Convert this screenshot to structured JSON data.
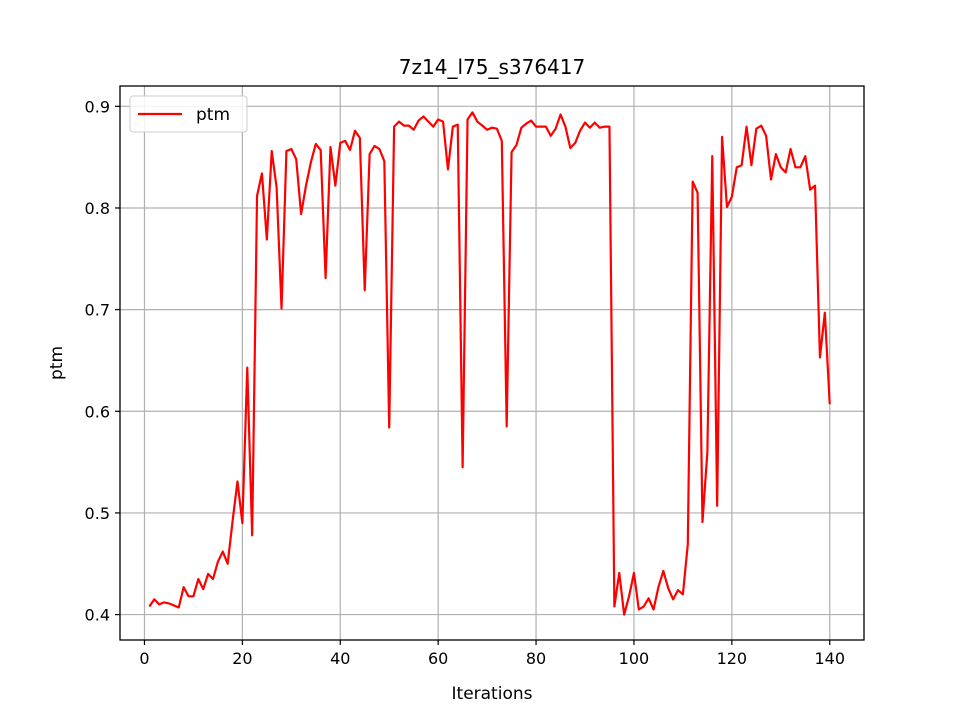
{
  "chart_data": {
    "type": "line",
    "title": "7z14_l75_s376417",
    "xlabel": "Iterations",
    "ylabel": "ptm",
    "xlim": [
      -5,
      147
    ],
    "ylim": [
      0.375,
      0.92
    ],
    "xticks": [
      0,
      20,
      40,
      60,
      80,
      100,
      120,
      140
    ],
    "yticks": [
      0.4,
      0.5,
      0.6,
      0.7,
      0.8,
      0.9
    ],
    "xtick_labels": [
      "0",
      "20",
      "40",
      "60",
      "80",
      "100",
      "120",
      "140"
    ],
    "ytick_labels": [
      "0.4",
      "0.5",
      "0.6",
      "0.7",
      "0.8",
      "0.9"
    ],
    "grid": true,
    "legend": {
      "position": "top-left",
      "entries": [
        "ptm"
      ]
    },
    "series": [
      {
        "name": "ptm",
        "color": "#ff0000",
        "x": [
          1,
          2,
          3,
          4,
          5,
          6,
          7,
          8,
          9,
          10,
          11,
          12,
          13,
          14,
          15,
          16,
          17,
          18,
          19,
          20,
          21,
          22,
          23,
          24,
          25,
          26,
          27,
          28,
          29,
          30,
          31,
          32,
          33,
          34,
          35,
          36,
          37,
          38,
          39,
          40,
          41,
          42,
          43,
          44,
          45,
          46,
          47,
          48,
          49,
          50,
          51,
          52,
          53,
          54,
          55,
          56,
          57,
          58,
          59,
          60,
          61,
          62,
          63,
          64,
          65,
          66,
          67,
          68,
          69,
          70,
          71,
          72,
          73,
          74,
          75,
          76,
          77,
          78,
          79,
          80,
          81,
          82,
          83,
          84,
          85,
          86,
          87,
          88,
          89,
          90,
          91,
          92,
          93,
          94,
          95,
          96,
          97,
          98,
          99,
          100,
          101,
          102,
          103,
          104,
          105,
          106,
          107,
          108,
          109,
          110,
          111,
          112,
          113,
          114,
          115,
          116,
          117,
          118,
          119,
          120,
          121,
          122,
          123,
          124,
          125,
          126,
          127,
          128,
          129,
          130,
          131,
          132,
          133,
          134,
          135,
          136,
          137,
          138,
          139,
          140
        ],
        "y": [
          0.408,
          0.415,
          0.41,
          0.412,
          0.411,
          0.409,
          0.407,
          0.427,
          0.418,
          0.418,
          0.435,
          0.425,
          0.44,
          0.435,
          0.452,
          0.462,
          0.45,
          0.492,
          0.531,
          0.49,
          0.643,
          0.478,
          0.812,
          0.834,
          0.769,
          0.856,
          0.82,
          0.701,
          0.856,
          0.858,
          0.848,
          0.794,
          0.822,
          0.845,
          0.863,
          0.857,
          0.731,
          0.86,
          0.822,
          0.864,
          0.866,
          0.857,
          0.876,
          0.869,
          0.719,
          0.853,
          0.861,
          0.858,
          0.846,
          0.584,
          0.88,
          0.885,
          0.881,
          0.881,
          0.877,
          0.886,
          0.89,
          0.885,
          0.88,
          0.887,
          0.885,
          0.838,
          0.88,
          0.882,
          0.545,
          0.887,
          0.894,
          0.885,
          0.881,
          0.877,
          0.879,
          0.878,
          0.866,
          0.585,
          0.855,
          0.862,
          0.879,
          0.883,
          0.886,
          0.88,
          0.88,
          0.88,
          0.871,
          0.878,
          0.892,
          0.88,
          0.859,
          0.864,
          0.876,
          0.884,
          0.879,
          0.884,
          0.879,
          0.88,
          0.88,
          0.408,
          0.441,
          0.4,
          0.418,
          0.441,
          0.405,
          0.408,
          0.416,
          0.405,
          0.427,
          0.443,
          0.426,
          0.415,
          0.424,
          0.42,
          0.469,
          0.826,
          0.815,
          0.491,
          0.56,
          0.851,
          0.507,
          0.87,
          0.801,
          0.811,
          0.84,
          0.842,
          0.88,
          0.842,
          0.878,
          0.881,
          0.871,
          0.828,
          0.853,
          0.84,
          0.835,
          0.858,
          0.84,
          0.84,
          0.851,
          0.818,
          0.822,
          0.653,
          0.697,
          0.607
        ]
      }
    ]
  }
}
